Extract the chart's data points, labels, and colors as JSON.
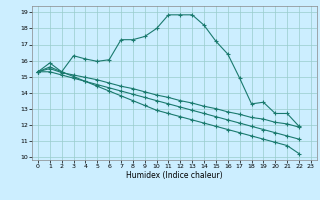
{
  "title": "",
  "xlabel": "Humidex (Indice chaleur)",
  "bg_color": "#cceeff",
  "grid_color": "#99cccc",
  "line_color": "#1a7a6e",
  "xlim": [
    -0.5,
    23.5
  ],
  "ylim": [
    9.8,
    19.4
  ],
  "xticks": [
    0,
    1,
    2,
    3,
    4,
    5,
    6,
    7,
    8,
    9,
    10,
    11,
    12,
    13,
    14,
    15,
    16,
    17,
    18,
    19,
    20,
    21,
    22,
    23
  ],
  "yticks": [
    10,
    11,
    12,
    13,
    14,
    15,
    16,
    17,
    18,
    19
  ],
  "line1_x": [
    0,
    1,
    2,
    3,
    4,
    5,
    6,
    7,
    8,
    9,
    10,
    11,
    12,
    13,
    14,
    15,
    16,
    17,
    18,
    19,
    20,
    21,
    22
  ],
  "line1_y": [
    15.3,
    15.85,
    15.3,
    16.3,
    16.1,
    15.95,
    16.05,
    17.3,
    17.3,
    17.5,
    18.0,
    18.85,
    18.85,
    18.85,
    18.2,
    17.2,
    16.4,
    14.9,
    13.3,
    13.4,
    12.7,
    12.7,
    11.9
  ],
  "line2_x": [
    0,
    1,
    2,
    3,
    4,
    5,
    6,
    7,
    8,
    9,
    10,
    11,
    12,
    13,
    14,
    15,
    16,
    17,
    18,
    19,
    20,
    21,
    22,
    23
  ],
  "line2_y": [
    15.3,
    15.5,
    15.25,
    15.1,
    14.95,
    14.8,
    14.6,
    14.4,
    14.25,
    14.05,
    13.85,
    13.7,
    13.5,
    13.35,
    13.15,
    13.0,
    12.8,
    12.65,
    12.45,
    12.35,
    12.15,
    12.05,
    11.85,
    null
  ],
  "line3_x": [
    0,
    1,
    2,
    3,
    4,
    5,
    6,
    7,
    8,
    9,
    10,
    11,
    12,
    13,
    14,
    15,
    16,
    17,
    18,
    19,
    20,
    21,
    22,
    23
  ],
  "line3_y": [
    15.3,
    15.3,
    15.1,
    14.9,
    14.7,
    14.5,
    14.3,
    14.1,
    13.9,
    13.7,
    13.5,
    13.3,
    13.1,
    12.9,
    12.7,
    12.5,
    12.3,
    12.1,
    11.9,
    11.7,
    11.5,
    11.3,
    11.1,
    null
  ],
  "line4_x": [
    0,
    1,
    2,
    3,
    4,
    5,
    6,
    7,
    8,
    9,
    10,
    11,
    12,
    13,
    14,
    15,
    16,
    17,
    18,
    19,
    20,
    21,
    22,
    23
  ],
  "line4_y": [
    15.3,
    15.6,
    15.3,
    15.0,
    14.7,
    14.4,
    14.1,
    13.8,
    13.5,
    13.2,
    12.9,
    12.7,
    12.5,
    12.3,
    12.1,
    11.9,
    11.7,
    11.5,
    11.3,
    11.1,
    10.9,
    10.7,
    10.2,
    null
  ]
}
